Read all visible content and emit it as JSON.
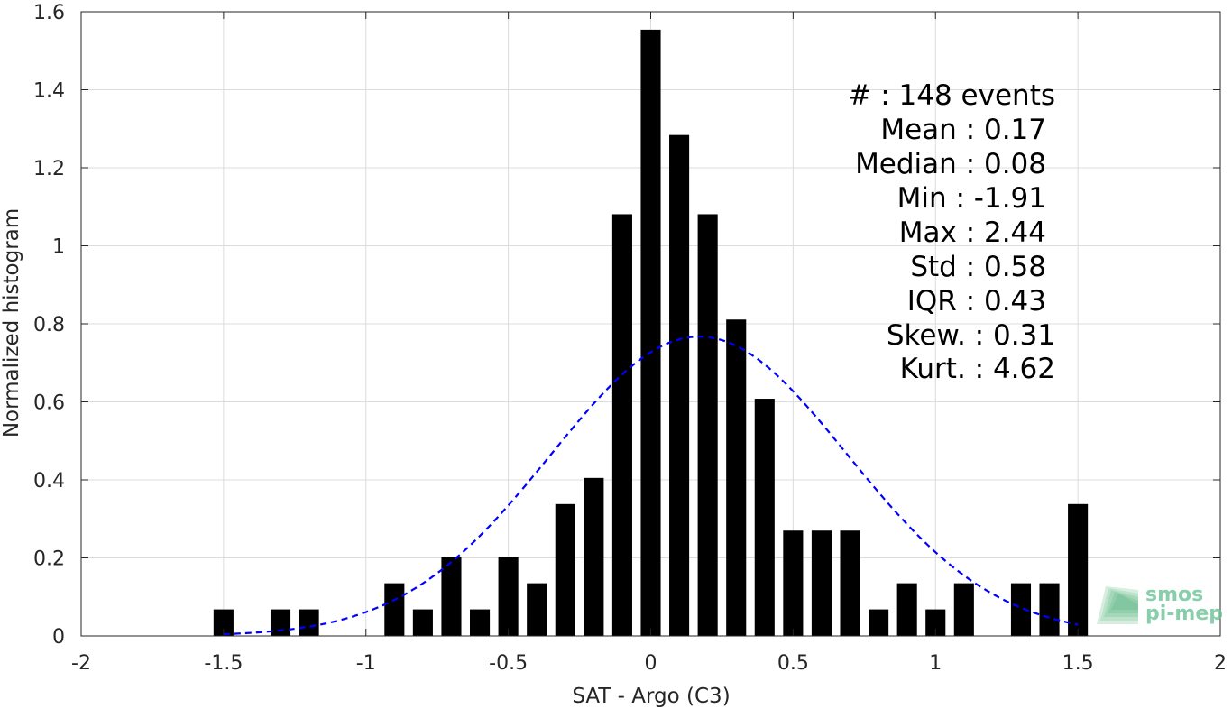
{
  "chart_data": {
    "type": "bar",
    "xlabel": "SAT - Argo (C3)",
    "ylabel": "Normalized histogram",
    "xlim": [
      -2,
      2
    ],
    "ylim": [
      0,
      1.6
    ],
    "xticks": [
      -2,
      -1.5,
      -1,
      -0.5,
      0,
      0.5,
      1,
      1.5,
      2
    ],
    "xtick_labels": [
      "-2",
      "-1.5",
      "-1",
      "-0.5",
      "0",
      "0.5",
      "1",
      "1.5",
      "2"
    ],
    "yticks": [
      0,
      0.2,
      0.4,
      0.6,
      0.8,
      1,
      1.2,
      1.4,
      1.6
    ],
    "ytick_labels": [
      "0",
      "0.2",
      "0.4",
      "0.6",
      "0.8",
      "1",
      "1.2",
      "1.4",
      "1.6"
    ],
    "grid": true,
    "bar_width": 0.07,
    "bar_color": "#000000",
    "bars": [
      {
        "x": -1.5,
        "y": 0.068
      },
      {
        "x": -1.3,
        "y": 0.068
      },
      {
        "x": -1.2,
        "y": 0.068
      },
      {
        "x": -0.9,
        "y": 0.135
      },
      {
        "x": -0.8,
        "y": 0.068
      },
      {
        "x": -0.7,
        "y": 0.203
      },
      {
        "x": -0.6,
        "y": 0.068
      },
      {
        "x": -0.5,
        "y": 0.203
      },
      {
        "x": -0.4,
        "y": 0.135
      },
      {
        "x": -0.3,
        "y": 0.338
      },
      {
        "x": -0.2,
        "y": 0.405
      },
      {
        "x": -0.1,
        "y": 1.081
      },
      {
        "x": 0.0,
        "y": 1.554
      },
      {
        "x": 0.1,
        "y": 1.284
      },
      {
        "x": 0.2,
        "y": 1.081
      },
      {
        "x": 0.3,
        "y": 0.811
      },
      {
        "x": 0.4,
        "y": 0.608
      },
      {
        "x": 0.5,
        "y": 0.27
      },
      {
        "x": 0.6,
        "y": 0.27
      },
      {
        "x": 0.7,
        "y": 0.27
      },
      {
        "x": 0.8,
        "y": 0.068
      },
      {
        "x": 0.9,
        "y": 0.135
      },
      {
        "x": 1.0,
        "y": 0.068
      },
      {
        "x": 1.1,
        "y": 0.135
      },
      {
        "x": 1.3,
        "y": 0.135
      },
      {
        "x": 1.4,
        "y": 0.135
      },
      {
        "x": 1.5,
        "y": 0.338
      }
    ],
    "fit_curve": {
      "type": "gaussian",
      "mean": 0.17,
      "std": 0.52,
      "x_range": [
        -1.5,
        1.5
      ],
      "color": "#0000ff",
      "style": "dashed"
    }
  },
  "stats": [
    {
      "label": "#  : 148 events"
    },
    {
      "label": "Mean : 0.17"
    },
    {
      "label": "Median : 0.08"
    },
    {
      "label": "Min : -1.91"
    },
    {
      "label": "Max : 2.44"
    },
    {
      "label": "Std : 0.58"
    },
    {
      "label": "IQR : 0.43"
    },
    {
      "label": "Skew. : 0.31"
    },
    {
      "label": "Kurt. : 4.62"
    }
  ],
  "logo": {
    "line1": "smos",
    "line2": "pi-mep",
    "color": "#5fb88a"
  }
}
